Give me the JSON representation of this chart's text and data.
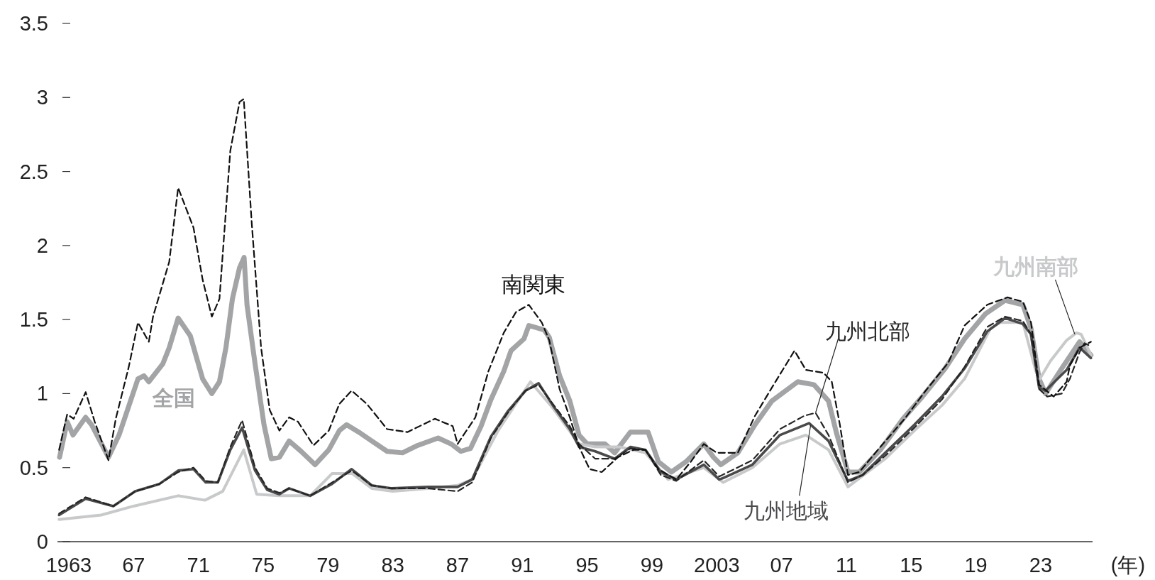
{
  "chart_data": {
    "type": "line",
    "xlabel": "(年)",
    "xlim": [
      1962.3,
      2026.2
    ],
    "ylim": [
      0,
      3.5
    ],
    "xticks": [
      {
        "value": 1963,
        "label": "1963"
      },
      {
        "value": 1967,
        "label": "67"
      },
      {
        "value": 1971,
        "label": "71"
      },
      {
        "value": 1975,
        "label": "75"
      },
      {
        "value": 1979,
        "label": "79"
      },
      {
        "value": 1983,
        "label": "83"
      },
      {
        "value": 1987,
        "label": "87"
      },
      {
        "value": 1991,
        "label": "91"
      },
      {
        "value": 1995,
        "label": "95"
      },
      {
        "value": 1999,
        "label": "99"
      },
      {
        "value": 2003,
        "label": "2003"
      },
      {
        "value": 2007,
        "label": "07"
      },
      {
        "value": 2011,
        "label": "11"
      },
      {
        "value": 2015,
        "label": "15"
      },
      {
        "value": 2019,
        "label": "19"
      },
      {
        "value": 2023,
        "label": "23"
      }
    ],
    "yticks": [
      0,
      0.5,
      1,
      1.5,
      2,
      2.5,
      3,
      3.5
    ],
    "series": [
      {
        "name": "全国",
        "color": "#a3a4a6",
        "line_style": "solid",
        "x": [
          1962.43,
          1962.9,
          1963.26,
          1964.04,
          1964.4,
          1965.45,
          1966.1,
          1967.27,
          1967.64,
          1967.94,
          1968.8,
          1969.2,
          1969.75,
          1970.5,
          1971.26,
          1971.83,
          1972.3,
          1972.7,
          1973.1,
          1973.54,
          1973.82,
          1974.0,
          1974.5,
          1975.05,
          1975.5,
          1976.0,
          1976.6,
          1977.34,
          1978.2,
          1979.05,
          1979.7,
          1980.15,
          1980.9,
          1981.7,
          1982.65,
          1983.6,
          1984.53,
          1985.8,
          1986.6,
          1987.2,
          1987.8,
          1988.45,
          1989.06,
          1989.85,
          1990.3,
          1991.1,
          1991.4,
          1992.35,
          1992.66,
          1993.3,
          1993.93,
          1994.5,
          1995.0,
          1996.1,
          1996.7,
          1997.67,
          1998.76,
          1999.4,
          2000.2,
          2001.1,
          2002.2,
          2002.8,
          2003.25,
          2004.3,
          2005.36,
          2006.4,
          2008.0,
          2009.0,
          2009.9,
          2010.4,
          2011.1,
          2011.8,
          2013.1,
          2014.5,
          2015.7,
          2017.1,
          2018.3,
          2019.6,
          2020.8,
          2021.9,
          2022.4,
          2022.9,
          2023.3,
          2024.3,
          2025.4,
          2026.1
        ],
        "values": [
          0.57,
          0.81,
          0.72,
          0.84,
          0.79,
          0.57,
          0.72,
          1.1,
          1.12,
          1.08,
          1.2,
          1.31,
          1.51,
          1.39,
          1.1,
          1.0,
          1.08,
          1.31,
          1.64,
          1.85,
          1.92,
          1.6,
          1.2,
          0.79,
          0.56,
          0.57,
          0.68,
          0.61,
          0.52,
          0.62,
          0.75,
          0.79,
          0.74,
          0.68,
          0.61,
          0.6,
          0.65,
          0.7,
          0.66,
          0.61,
          0.63,
          0.78,
          0.96,
          1.15,
          1.29,
          1.37,
          1.46,
          1.43,
          1.38,
          1.12,
          0.95,
          0.72,
          0.66,
          0.66,
          0.6,
          0.74,
          0.74,
          0.54,
          0.47,
          0.54,
          0.66,
          0.57,
          0.52,
          0.6,
          0.79,
          0.95,
          1.08,
          1.06,
          0.95,
          0.73,
          0.47,
          0.47,
          0.62,
          0.83,
          0.98,
          1.17,
          1.37,
          1.54,
          1.63,
          1.6,
          1.44,
          1.1,
          1.0,
          1.17,
          1.35,
          1.26
        ]
      },
      {
        "name": "九州南部",
        "color": "#c8c9ca",
        "line_style": "solid",
        "x": [
          1962.4,
          1965.0,
          1967.0,
          1969.75,
          1971.4,
          1972.5,
          1973.8,
          1974.6,
          1976.0,
          1977.9,
          1979.25,
          1980.5,
          1981.7,
          1983.0,
          1985.2,
          1987.0,
          1987.9,
          1989.5,
          1991.5,
          1992.9,
          1994.5,
          1995.5,
          1997.0,
          1998.6,
          2000.0,
          2002.2,
          2003.4,
          2005.2,
          2006.9,
          2008.5,
          2009.9,
          2011.1,
          2013.4,
          2015.2,
          2016.9,
          2018.3,
          2019.9,
          2020.5,
          2021.9,
          2022.7,
          2022.95,
          2023.6,
          2024.6,
          2025.2,
          2025.5,
          2026.1
        ],
        "values": [
          0.15,
          0.18,
          0.24,
          0.31,
          0.28,
          0.34,
          0.62,
          0.32,
          0.31,
          0.31,
          0.46,
          0.46,
          0.36,
          0.34,
          0.36,
          0.38,
          0.42,
          0.75,
          1.08,
          0.9,
          0.66,
          0.64,
          0.64,
          0.6,
          0.42,
          0.5,
          0.4,
          0.5,
          0.66,
          0.72,
          0.62,
          0.37,
          0.56,
          0.75,
          0.92,
          1.1,
          1.44,
          1.48,
          1.48,
          1.15,
          1.1,
          1.22,
          1.36,
          1.41,
          1.4,
          1.26
        ]
      },
      {
        "name": "九州地域",
        "color": "#4a4a4c",
        "line_style": "solid",
        "x": [
          1962.4,
          1964.04,
          1965.75,
          1967.1,
          1968.6,
          1969.75,
          1970.7,
          1971.45,
          1972.2,
          1972.97,
          1973.7,
          1974.5,
          1975.25,
          1976.0,
          1976.6,
          1977.9,
          1979.25,
          1980.46,
          1981.7,
          1982.95,
          1985.2,
          1987.0,
          1987.9,
          1989.06,
          1990.1,
          1991.2,
          1992.0,
          1992.95,
          1993.93,
          1994.5,
          1995.5,
          1996.7,
          1997.67,
          1998.6,
          1999.55,
          2000.5,
          2002.2,
          2003.15,
          2003.4,
          2005.2,
          2006.9,
          2008.7,
          2009.9,
          2011.1,
          2012.0,
          2013.4,
          2015.2,
          2016.9,
          2018.3,
          2019.7,
          2020.8,
          2021.9,
          2022.4,
          2022.9,
          2023.3,
          2024.6,
          2025.4,
          2026.1
        ],
        "values": [
          0.18,
          0.29,
          0.24,
          0.34,
          0.39,
          0.48,
          0.49,
          0.4,
          0.4,
          0.62,
          0.77,
          0.48,
          0.35,
          0.32,
          0.36,
          0.31,
          0.39,
          0.49,
          0.38,
          0.36,
          0.37,
          0.37,
          0.42,
          0.71,
          0.88,
          1.02,
          1.07,
          0.91,
          0.76,
          0.64,
          0.61,
          0.56,
          0.64,
          0.62,
          0.47,
          0.42,
          0.52,
          0.42,
          0.43,
          0.52,
          0.72,
          0.8,
          0.68,
          0.41,
          0.45,
          0.6,
          0.79,
          0.98,
          1.17,
          1.42,
          1.51,
          1.47,
          1.4,
          1.04,
          1.02,
          1.16,
          1.31,
          1.24
        ]
      },
      {
        "name": "九州北部",
        "color": "#262626",
        "line_style": "dashed",
        "x": [
          1962.4,
          1964.04,
          1965.75,
          1967.1,
          1968.6,
          1969.75,
          1970.7,
          1971.45,
          1972.2,
          1972.97,
          1973.7,
          1974.5,
          1975.25,
          1976.0,
          1976.6,
          1977.9,
          1979.25,
          1980.46,
          1981.7,
          1982.95,
          1985.2,
          1987.0,
          1987.9,
          1989.06,
          1990.1,
          1991.2,
          1992.0,
          1992.95,
          1993.93,
          1994.5,
          1995.5,
          1996.7,
          1997.67,
          1998.6,
          1999.55,
          2000.5,
          2002.2,
          2003.15,
          2005.2,
          2006.9,
          2008.4,
          2009.1,
          2009.9,
          2011.1,
          2012.0,
          2013.4,
          2015.2,
          2016.9,
          2018.3,
          2019.7,
          2020.8,
          2021.9,
          2022.4,
          2022.9,
          2023.4,
          2024.3,
          2024.8,
          2025.4,
          2025.7,
          2026.1
        ],
        "values": [
          0.19,
          0.3,
          0.24,
          0.34,
          0.39,
          0.47,
          0.5,
          0.41,
          0.4,
          0.64,
          0.82,
          0.5,
          0.36,
          0.33,
          0.36,
          0.31,
          0.4,
          0.48,
          0.38,
          0.36,
          0.36,
          0.34,
          0.4,
          0.7,
          0.87,
          1.02,
          1.06,
          0.92,
          0.78,
          0.66,
          0.56,
          0.56,
          0.63,
          0.62,
          0.45,
          0.41,
          0.55,
          0.44,
          0.55,
          0.76,
          0.85,
          0.87,
          0.72,
          0.4,
          0.45,
          0.58,
          0.77,
          0.96,
          1.18,
          1.45,
          1.52,
          1.49,
          1.4,
          1.03,
          0.98,
          1.0,
          1.1,
          1.28,
          1.34,
          1.32
        ]
      },
      {
        "name": "南関東",
        "color": "#111111",
        "line_style": "dashed",
        "x": [
          1962.4,
          1962.9,
          1963.3,
          1964.04,
          1964.6,
          1965.45,
          1965.9,
          1966.7,
          1967.27,
          1967.94,
          1968.2,
          1969.2,
          1969.75,
          1970.7,
          1971.26,
          1971.83,
          1972.3,
          1972.97,
          1973.54,
          1973.8,
          1974.3,
          1974.87,
          1975.4,
          1976.0,
          1976.6,
          1977.15,
          1978.1,
          1979.05,
          1979.7,
          1980.46,
          1981.4,
          1982.65,
          1983.9,
          1985.6,
          1986.7,
          1987.0,
          1988.1,
          1988.9,
          1989.85,
          1990.6,
          1991.4,
          1992.2,
          1992.66,
          1993.3,
          1993.93,
          1994.5,
          1995.15,
          1995.9,
          1996.9,
          1997.85,
          1998.6,
          1999.4,
          2000.5,
          2001.4,
          2002.2,
          2003.0,
          2004.3,
          2005.36,
          2006.4,
          2007.8,
          2008.5,
          2009.6,
          2010.1,
          2010.6,
          2011.1,
          2011.8,
          2013.1,
          2014.6,
          2015.9,
          2017.3,
          2018.3,
          2019.7,
          2020.95,
          2021.9,
          2022.4,
          2022.9,
          2023.8,
          2024.6,
          2024.8,
          2025.4,
          2026.1
        ],
        "values": [
          0.62,
          0.86,
          0.83,
          1.01,
          0.81,
          0.55,
          0.83,
          1.18,
          1.48,
          1.35,
          1.52,
          1.89,
          2.39,
          2.12,
          1.77,
          1.52,
          1.64,
          2.64,
          2.97,
          2.99,
          2.14,
          1.31,
          0.89,
          0.75,
          0.84,
          0.81,
          0.65,
          0.75,
          0.93,
          1.02,
          0.93,
          0.76,
          0.74,
          0.83,
          0.78,
          0.66,
          0.84,
          1.15,
          1.41,
          1.55,
          1.6,
          1.48,
          1.36,
          1.03,
          0.84,
          0.64,
          0.49,
          0.47,
          0.57,
          0.62,
          0.62,
          0.49,
          0.42,
          0.54,
          0.66,
          0.6,
          0.6,
          0.85,
          1.04,
          1.29,
          1.16,
          1.14,
          1.08,
          0.79,
          0.45,
          0.47,
          0.64,
          0.83,
          1.02,
          1.21,
          1.46,
          1.6,
          1.65,
          1.62,
          1.48,
          1.06,
          0.98,
          1.08,
          1.19,
          1.31,
          1.35
        ]
      }
    ]
  }
}
